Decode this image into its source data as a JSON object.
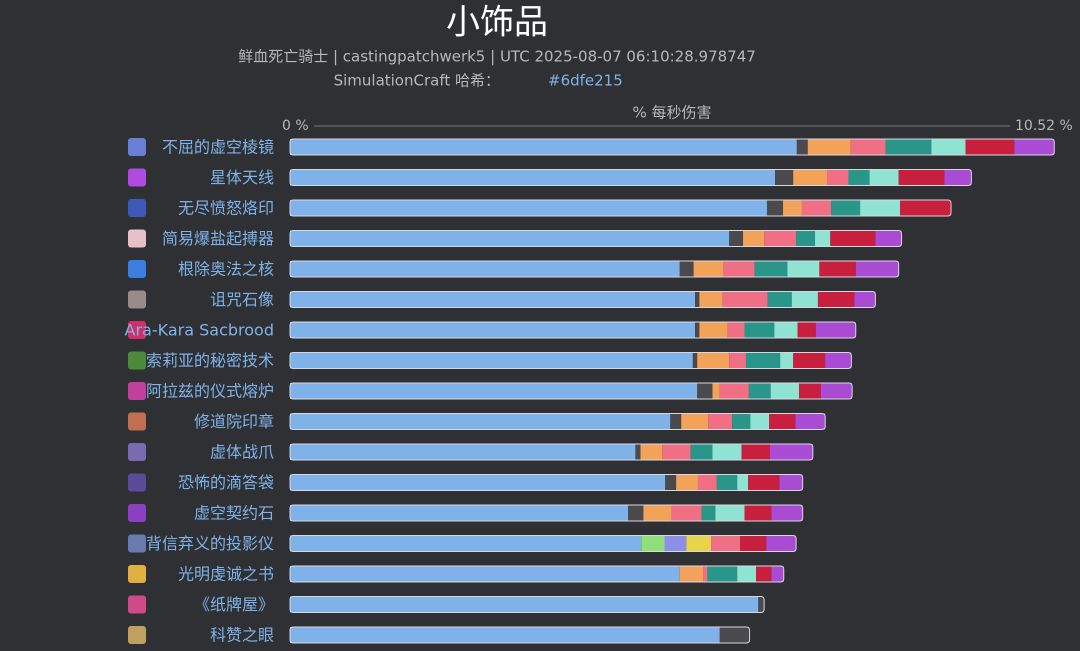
{
  "chart_data": {
    "type": "stacked_bar",
    "orientation": "horizontal",
    "title": "小饰品",
    "subtitle": "鲜血死亡骑士 | castingpatchwerk5 | UTC 2025-08-07 06:10:28.978747",
    "subtitle2": "SimulationCraft 哈希：",
    "hash": "#6dfe215",
    "x_label": "% 每秒伤害",
    "xlim": [
      0,
      10.52
    ],
    "xticks": [
      {
        "value": 0,
        "label": "0 %"
      },
      {
        "value": 10.52,
        "label": "10.52 %"
      }
    ],
    "categories": [
      "不屈的虚空棱镜",
      "星体天线",
      "无尽愤怒烙印",
      "简易爆盐起搏器",
      "根除奥法之核",
      "诅咒石像",
      "Ara-Kara Sacbrood",
      "索莉亚的秘密技术",
      "阿拉兹的仪式熔炉",
      "修道院印章",
      "虚体战爪",
      "恐怖的滴答袋",
      "虚空契约石",
      "背信弃义的投影仪",
      "光明虔诚之书",
      "《纸牌屋》",
      "科赞之眼"
    ],
    "series": [
      {
        "color": "#7fb2e8",
        "values": [
          6.97,
          6.67,
          6.56,
          6.04,
          5.36,
          5.57,
          5.57,
          5.54,
          5.6,
          5.23,
          4.75,
          5.16,
          4.65,
          4.83,
          5.36,
          6.44,
          5.91
        ]
      },
      {
        "color": "#4a4a4e",
        "values": [
          0.15,
          0.25,
          0.22,
          0.19,
          0.19,
          0.06,
          0.06,
          0.06,
          0.21,
          0.15,
          0.07,
          0.15,
          0.21,
          0,
          0,
          0.08,
          0.41
        ]
      },
      {
        "color": "#8fe07a",
        "values": [
          0,
          0,
          0,
          0,
          0,
          0,
          0,
          0,
          0,
          0,
          0,
          0,
          0,
          0.32,
          0,
          0,
          0
        ]
      },
      {
        "color": "#8c8fe8",
        "values": [
          0,
          0,
          0,
          0,
          0,
          0,
          0,
          0,
          0,
          0,
          0,
          0,
          0,
          0.3,
          0,
          0,
          0
        ]
      },
      {
        "color": "#e8d44a",
        "values": [
          0,
          0,
          0,
          0,
          0,
          0,
          0,
          0,
          0,
          0,
          0,
          0,
          0,
          0.34,
          0,
          0,
          0
        ]
      },
      {
        "color": "#f3a25a",
        "values": [
          0.59,
          0.47,
          0.26,
          0.29,
          0.41,
          0.32,
          0.39,
          0.44,
          0.1,
          0.37,
          0.3,
          0.3,
          0.39,
          0,
          0.32,
          0,
          0
        ]
      },
      {
        "color": "#f06f84",
        "values": [
          0.48,
          0.29,
          0.4,
          0.44,
          0.43,
          0.62,
          0.23,
          0.23,
          0.4,
          0.33,
          0.39,
          0.26,
          0.41,
          0.4,
          0.06,
          0,
          0
        ]
      },
      {
        "color": "#2a968a",
        "values": [
          0.63,
          0.29,
          0.4,
          0.26,
          0.45,
          0.33,
          0.41,
          0.47,
          0.3,
          0.25,
          0.3,
          0.28,
          0.19,
          0,
          0.41,
          0,
          0
        ]
      },
      {
        "color": "#8fe3d3",
        "values": [
          0.47,
          0.4,
          0.55,
          0.21,
          0.44,
          0.36,
          0.32,
          0.18,
          0.39,
          0.26,
          0.4,
          0.15,
          0.4,
          0,
          0.26,
          0,
          0
        ]
      },
      {
        "color": "#c91f3e",
        "values": [
          0.67,
          0.63,
          0.7,
          0.62,
          0.5,
          0.5,
          0.25,
          0.44,
          0.3,
          0.36,
          0.39,
          0.43,
          0.37,
          0.36,
          0.21,
          0,
          0
        ]
      },
      {
        "color": "#a94bd3",
        "values": [
          0.55,
          0.37,
          0,
          0.36,
          0.59,
          0.29,
          0.55,
          0.36,
          0.43,
          0.41,
          0.59,
          0.32,
          0.43,
          0.41,
          0.17,
          0,
          0
        ]
      }
    ]
  }
}
